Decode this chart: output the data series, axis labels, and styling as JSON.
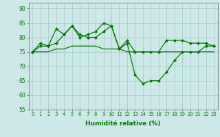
{
  "line1": [
    75,
    77,
    77,
    78,
    81,
    84,
    80,
    81,
    82,
    85,
    84,
    76,
    78,
    67,
    64,
    65,
    65,
    68,
    72,
    75,
    75,
    75,
    77,
    77
  ],
  "line2": [
    75,
    78,
    77,
    83,
    81,
    84,
    81,
    80,
    80,
    82,
    84,
    76,
    79,
    75,
    75,
    75,
    75,
    79,
    79,
    79,
    78,
    78,
    78,
    77
  ],
  "line3": [
    75,
    75,
    75,
    76,
    76,
    77,
    77,
    77,
    77,
    76,
    76,
    76,
    75,
    75,
    75,
    75,
    75,
    75,
    75,
    75,
    75,
    75,
    75,
    75
  ],
  "x": [
    0,
    1,
    2,
    3,
    4,
    5,
    6,
    7,
    8,
    9,
    10,
    11,
    12,
    13,
    14,
    15,
    16,
    17,
    18,
    19,
    20,
    21,
    22,
    23
  ],
  "xlabel": "Humidité relative (%)",
  "ylim": [
    55,
    92
  ],
  "yticks": [
    55,
    60,
    65,
    70,
    75,
    80,
    85,
    90
  ],
  "bg_color": "#cce8e8",
  "grid_color": "#aacccc",
  "line_color": "#007700",
  "markersize": 2.5
}
